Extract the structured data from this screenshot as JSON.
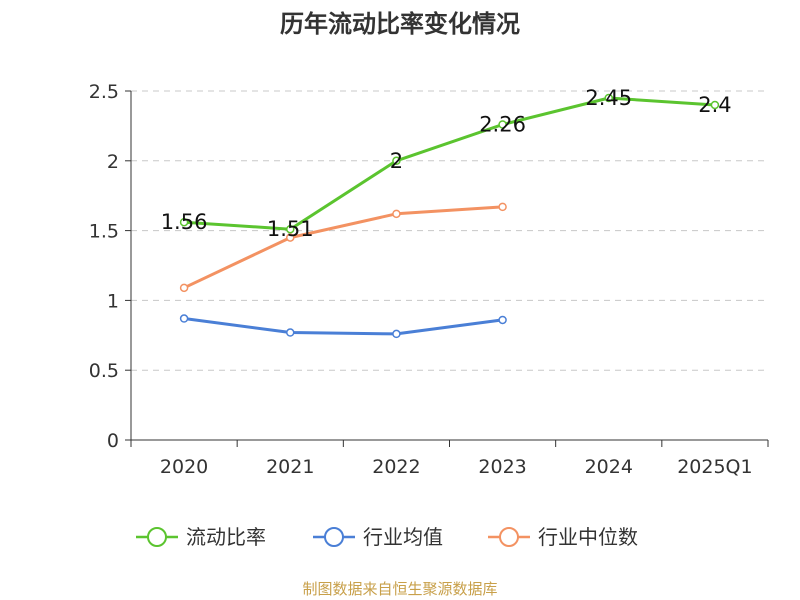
{
  "chart_data": {
    "type": "line",
    "title": "历年流动比率变化情况",
    "categories": [
      "2020",
      "2021",
      "2022",
      "2023",
      "2024",
      "2025Q1"
    ],
    "ylim": [
      0,
      2.5
    ],
    "yticks": [
      "0",
      "0.5",
      "1",
      "1.5",
      "2",
      "2.5"
    ],
    "grid": true,
    "legend_position": "bottom",
    "series": [
      {
        "name": "流动比率",
        "color": "#5bc42f",
        "values": [
          1.56,
          1.51,
          2,
          2.26,
          2.45,
          2.4
        ],
        "labels": [
          "1.56",
          "1.51",
          "2",
          "2.26",
          "2.45",
          "2.4"
        ]
      },
      {
        "name": "行业均值",
        "color": "#4a7fd6",
        "values": [
          0.87,
          0.77,
          0.76,
          0.86,
          null,
          null
        ]
      },
      {
        "name": "行业中位数",
        "color": "#f39262",
        "values": [
          1.09,
          1.45,
          1.62,
          1.67,
          null,
          null
        ]
      }
    ]
  },
  "footer": {
    "source": "制图数据来自恒生聚源数据库"
  }
}
